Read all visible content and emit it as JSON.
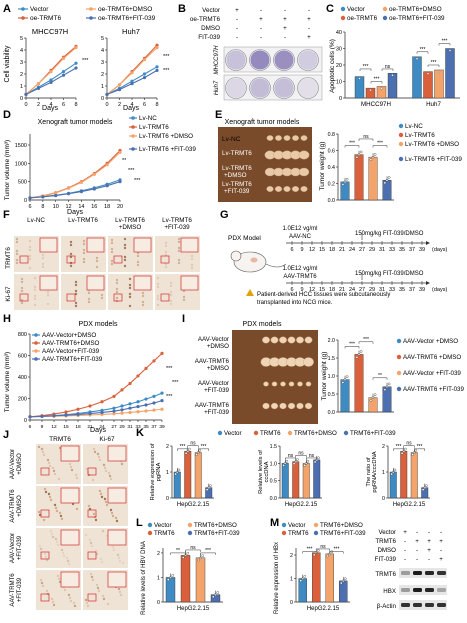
{
  "colors": {
    "vector": "#3e8bc4",
    "trmt6": "#d9603b",
    "dmso": "#f4a46a",
    "fit": "#4b6fb0",
    "axis": "#222222",
    "plate_bg": "#7a4b2a",
    "ihc_bg": "#efe3d6",
    "red_box": "#d22a2a"
  },
  "panels": {
    "A": {
      "letter": "A",
      "legend": [
        "Vector",
        "oe-TRMT6",
        "oe-TRMT6+DMSO",
        "oe-TRMT6+FIT-039"
      ],
      "ylabel": "Cell viability",
      "xlabel": "Days",
      "left_title": "MHCC97H",
      "right_title": "Huh7",
      "xticks": [
        "0",
        "2",
        "4",
        "6",
        "8"
      ],
      "yticks_left": [
        "0",
        "1",
        "2",
        "3",
        "4",
        "5"
      ],
      "yticks_right": [
        "0",
        "1",
        "2",
        "3",
        "4",
        "5"
      ],
      "sig": [
        "***",
        "***",
        "***"
      ]
    },
    "B": {
      "letter": "B",
      "row_labels": [
        "Vector",
        "oe-TRMT6",
        "DMSO",
        "FIT-039"
      ],
      "grid": [
        [
          "+",
          "-",
          "-",
          "-"
        ],
        [
          "-",
          "+",
          "+",
          "+"
        ],
        [
          "-",
          "-",
          "+",
          "-"
        ],
        [
          "-",
          "-",
          "-",
          "+"
        ]
      ],
      "cell_labels": [
        "MHCC97H",
        "Huh7"
      ]
    },
    "C": {
      "letter": "C",
      "legend": [
        "Vector",
        "oe-TRMT6",
        "oe-TRMT6+DMSO",
        "oe-TRMT6+FIT-039"
      ],
      "ylabel": "Apoptotic cells (%)",
      "yticks": [
        "0",
        "10",
        "20",
        "30",
        "40"
      ],
      "groups": [
        "MHCC97H",
        "Huh7"
      ],
      "sig": [
        "***",
        "***",
        "ns",
        "***",
        "***",
        "***"
      ]
    },
    "D": {
      "letter": "D",
      "title": "Xenograft tumor models",
      "legend": [
        "Lv-NC",
        "Lv-TRMT6",
        "Lv-TRMT6 +DMSO",
        "Lv-TRMT6 +FIT-039"
      ],
      "ylabel": "Tumor volume (mm³)",
      "xlabel": "Days",
      "xticks": [
        "6",
        "8",
        "10",
        "12",
        "14",
        "16",
        "18",
        "20"
      ],
      "yticks": [
        "0",
        "500",
        "1000",
        "1500"
      ],
      "sig": [
        "**",
        "***",
        "***"
      ]
    },
    "E": {
      "letter": "E",
      "title": "Xenograft tumor models",
      "row_labels": [
        "Lv-NC",
        "Lv-TRMT6",
        "Lv-TRMT6 +DMSO",
        "Lv-TRMT6 +FIT-039"
      ],
      "ylabel": "Tumor weight (g)",
      "yticks": [
        "0.0",
        "0.2",
        "0.4",
        "0.6",
        "0.8"
      ],
      "legend": [
        "Lv-NC",
        "Lv-TRMT6",
        "Lv-TRMT6 +DMSO",
        "Lv-TRMT6 +FIT-039"
      ],
      "sig": [
        "***",
        "ns",
        "***"
      ]
    },
    "F": {
      "letter": "F",
      "cols": [
        "Lv-NC",
        "Lv-TRMT6",
        "Lv-TRMT6 +DMSO",
        "Lv-TRMT6 +FIT-039"
      ],
      "rows": [
        "TRMT6",
        "Ki-67"
      ]
    },
    "G": {
      "letter": "G",
      "model_label": "PDX Model",
      "dose1": "1.0E12 vg/ml",
      "arm1": "AAV-NC",
      "dose2": "1.0E12 vg/ml",
      "arm2": "AAV-TRMT6",
      "drug": "150mg/kg FIT-039/DMSO",
      "days": [
        "6",
        "9",
        "12",
        "15",
        "18",
        "21",
        "24",
        "27",
        "29",
        "31",
        "33",
        "35",
        "37",
        "39"
      ],
      "days_unit": "(days)",
      "note": "Patient-derived HCC tissues were subcutaneously transplanted into NCG mice."
    },
    "H": {
      "letter": "H",
      "title": "PDX models",
      "legend": [
        "AAV-Vector+DMSO",
        "AAV-TRMT6+DMSO",
        "AAV-Vector+FIT-039",
        "AAV-TRMT6+FIT-039"
      ],
      "ylabel": "Tumor volume (mm³)",
      "xlabel": "Days",
      "xticks": [
        "6",
        "9",
        "12",
        "15",
        "18",
        "21",
        "24",
        "27",
        "29",
        "31",
        "33",
        "35",
        "37",
        "39"
      ],
      "yticks": [
        "0",
        "200",
        "400",
        "600",
        "800"
      ],
      "sig": [
        "***",
        "***",
        "***"
      ]
    },
    "I": {
      "letter": "I",
      "title": "PDX models",
      "row_labels": [
        "AAV-Vector +DMSO",
        "AAV-TRMT6 +DMSO",
        "AAV-Vector +FIT-039",
        "AAV-TRMT6 +FIT-039"
      ],
      "ylabel": "Tumor weight (g)",
      "yticks": [
        "0.0",
        "0.5",
        "1.0",
        "1.5",
        "2.0"
      ],
      "legend": [
        "AAV-Vector +DMSO",
        "AAV-TRMT6 +DMSO",
        "AAV-Vector +FIT-039",
        "AAV-TRMT6 +FIT-039"
      ],
      "sig": [
        "***",
        "***",
        "**"
      ]
    },
    "J": {
      "letter": "J",
      "cols": [
        "TRMT6",
        "Ki-67"
      ],
      "rows": [
        "AAV-Vector +DMSO",
        "AAV-TRMT6 +DMSO",
        "AAV-Vector +FIT-039",
        "AAV-TRMT6 +FIT-039"
      ]
    },
    "K": {
      "letter": "K",
      "legend": [
        "Vector",
        "TRMT6",
        "TRMT6+DMSO",
        "TRMT6+FIT-039"
      ],
      "sub": [
        {
          "ylabel": "Relative expression of pgRNA",
          "yticks": [
            "0",
            "1",
            "2"
          ],
          "xlabel": "HepG2.2.15",
          "sig": [
            "***",
            "ns",
            "***"
          ]
        },
        {
          "ylabel": "Relative levels of cccDNA",
          "yticks": [
            "0.0",
            "0.5",
            "1.0",
            "1.5"
          ],
          "xlabel": "HepG2.2.15",
          "sig": [
            "ns",
            "ns",
            "ns"
          ]
        },
        {
          "ylabel": "The ratio of pgRNA/cccDNA",
          "yticks": [
            "0",
            "1",
            "2"
          ],
          "xlabel": "HepG2.2.15",
          "sig": [
            "***",
            "ns",
            "***"
          ]
        }
      ]
    },
    "L": {
      "letter": "L",
      "legend": [
        "Vector",
        "TRMT6+DMSO",
        "TRMT6",
        "TRMT6+FIT-039"
      ],
      "ylabel": "Relative levels of HBV DNA",
      "yticks": [
        "0",
        "1",
        "2"
      ],
      "xlabel": "HepG2.2.15",
      "sig": [
        "**",
        "ns",
        "***"
      ]
    },
    "M": {
      "letter": "M",
      "legend": [
        "Vector",
        "TRMT6+DMSO",
        "TRMT6",
        "TRMT6+FIT-039"
      ],
      "ylabel": "Relative expression of HBx",
      "yticks": [
        "0",
        "1",
        "2"
      ],
      "xlabel": "HepG2.2.15",
      "sig": [
        "***",
        "ns",
        "***"
      ],
      "blot_rows": [
        "Vector",
        "TRMT6",
        "DMSO",
        "FIT-039"
      ],
      "blot_grid": [
        [
          "+",
          "-",
          "-",
          "-"
        ],
        [
          "-",
          "+",
          "+",
          "+"
        ],
        [
          "-",
          "-",
          "+",
          "-"
        ],
        [
          "-",
          "-",
          "-",
          "+"
        ]
      ],
      "bands": [
        "TRMT6",
        "HBX",
        "β-Actin"
      ]
    }
  },
  "chart_data": [
    {
      "type": "line",
      "panel": "A-left",
      "title": "MHCC97H",
      "xlabel": "Days",
      "ylabel": "Cell viability",
      "x": [
        0,
        2,
        4,
        6,
        8
      ],
      "ylim": [
        0,
        5
      ],
      "series": [
        {
          "name": "Vector",
          "values": [
            0.3,
            0.9,
            1.5,
            2.2,
            2.9
          ]
        },
        {
          "name": "oe-TRMT6",
          "values": [
            0.3,
            1.2,
            2.3,
            3.4,
            4.3
          ]
        },
        {
          "name": "oe-TRMT6+DMSO",
          "values": [
            0.3,
            1.2,
            2.2,
            3.3,
            4.2
          ]
        },
        {
          "name": "oe-TRMT6+FIT-039",
          "values": [
            0.3,
            0.8,
            1.3,
            1.9,
            2.5
          ]
        }
      ]
    },
    {
      "type": "line",
      "panel": "A-right",
      "title": "Huh7",
      "xlabel": "Days",
      "ylabel": "Cell viability",
      "x": [
        0,
        2,
        4,
        6,
        8
      ],
      "ylim": [
        0,
        5
      ],
      "series": [
        {
          "name": "Vector",
          "values": [
            0.3,
            0.8,
            1.4,
            2.0,
            2.6
          ]
        },
        {
          "name": "oe-TRMT6",
          "values": [
            0.3,
            1.1,
            2.2,
            3.3,
            4.4
          ]
        },
        {
          "name": "oe-TRMT6+DMSO",
          "values": [
            0.3,
            1.1,
            2.1,
            3.2,
            4.2
          ]
        },
        {
          "name": "oe-TRMT6+FIT-039",
          "values": [
            0.3,
            0.7,
            1.2,
            1.7,
            2.3
          ]
        }
      ]
    },
    {
      "type": "bar",
      "panel": "C",
      "ylabel": "Apoptotic cells (%)",
      "categories": [
        "MHCC97H",
        "Huh7"
      ],
      "ylim": [
        0,
        40
      ],
      "series": [
        {
          "name": "Vector",
          "values": [
            13,
            25
          ]
        },
        {
          "name": "oe-TRMT6",
          "values": [
            6,
            16
          ]
        },
        {
          "name": "oe-TRMT6+DMSO",
          "values": [
            7,
            17
          ]
        },
        {
          "name": "oe-TRMT6+FIT-039",
          "values": [
            15,
            30
          ]
        }
      ]
    },
    {
      "type": "line",
      "panel": "D",
      "title": "Xenograft tumor models",
      "xlabel": "Days",
      "ylabel": "Tumor volume (mm³)",
      "x": [
        6,
        8,
        10,
        12,
        14,
        16,
        18,
        20
      ],
      "ylim": [
        0,
        1800
      ],
      "series": [
        {
          "name": "Lv-NC",
          "values": [
            60,
            90,
            130,
            180,
            250,
            330,
            430,
            550
          ]
        },
        {
          "name": "Lv-TRMT6",
          "values": [
            60,
            110,
            200,
            330,
            500,
            720,
            1000,
            1350
          ]
        },
        {
          "name": "Lv-TRMT6 +DMSO",
          "values": [
            60,
            105,
            190,
            320,
            480,
            700,
            960,
            1300
          ]
        },
        {
          "name": "Lv-TRMT6 +FIT-039",
          "values": [
            60,
            85,
            120,
            170,
            230,
            300,
            390,
            500
          ]
        }
      ]
    },
    {
      "type": "bar",
      "panel": "E",
      "title": "Xenograft tumor models",
      "ylabel": "Tumor weight (g)",
      "categories": [
        "Lv-NC",
        "Lv-TRMT6",
        "Lv-TRMT6 +DMSO",
        "Lv-TRMT6 +FIT-039"
      ],
      "ylim": [
        0,
        0.8
      ],
      "values": [
        0.22,
        0.55,
        0.52,
        0.24
      ]
    },
    {
      "type": "line",
      "panel": "H",
      "title": "PDX models",
      "xlabel": "Days",
      "ylabel": "Tumor volume (mm³)",
      "x": [
        6,
        9,
        12,
        15,
        18,
        21,
        24,
        27,
        29,
        31,
        33,
        35,
        37,
        39
      ],
      "ylim": [
        0,
        800
      ],
      "series": [
        {
          "name": "AAV-Vector+DMSO",
          "values": [
            30,
            35,
            40,
            50,
            60,
            75,
            90,
            110,
            130,
            150,
            170,
            195,
            220,
            250
          ]
        },
        {
          "name": "AAV-TRMT6+DMSO",
          "values": [
            30,
            40,
            55,
            75,
            100,
            130,
            170,
            220,
            280,
            340,
            410,
            480,
            550,
            620
          ]
        },
        {
          "name": "AAV-Vector+FIT-039",
          "values": [
            30,
            32,
            35,
            38,
            42,
            47,
            52,
            58,
            64,
            70,
            77,
            84,
            92,
            100
          ]
        },
        {
          "name": "AAV-TRMT6+FIT-039",
          "values": [
            30,
            34,
            39,
            45,
            52,
            60,
            70,
            82,
            95,
            110,
            125,
            140,
            158,
            180
          ]
        }
      ]
    },
    {
      "type": "bar",
      "panel": "I",
      "title": "PDX models",
      "ylabel": "Tumor weight (g)",
      "categories": [
        "AAV-Vector +DMSO",
        "AAV-TRMT6 +DMSO",
        "AAV-Vector +FIT-039",
        "AAV-TRMT6 +FIT-039"
      ],
      "ylim": [
        0,
        2.0
      ],
      "values": [
        0.9,
        1.6,
        0.4,
        0.7
      ]
    },
    {
      "type": "bar",
      "panel": "K-1",
      "ylabel": "Relative expression of pgRNA",
      "xlabel": "HepG2.2.15",
      "categories": [
        "Vector",
        "TRMT6",
        "TRMT6+DMSO",
        "TRMT6+FIT-039"
      ],
      "ylim": [
        0,
        2.5
      ],
      "values": [
        1.0,
        1.8,
        1.75,
        0.4
      ]
    },
    {
      "type": "bar",
      "panel": "K-2",
      "ylabel": "Relative levels of cccDNA",
      "xlabel": "HepG2.2.15",
      "categories": [
        "Vector",
        "TRMT6",
        "TRMT6+DMSO",
        "TRMT6+FIT-039"
      ],
      "ylim": [
        0,
        1.5
      ],
      "values": [
        1.0,
        1.05,
        1.0,
        1.1
      ]
    },
    {
      "type": "bar",
      "panel": "K-3",
      "ylabel": "The ratio of pgRNA/cccDNA",
      "xlabel": "HepG2.2.15",
      "categories": [
        "Vector",
        "TRMT6",
        "TRMT6+DMSO",
        "TRMT6+FIT-039"
      ],
      "ylim": [
        0,
        2.5
      ],
      "values": [
        1.0,
        1.8,
        1.75,
        0.4
      ]
    },
    {
      "type": "bar",
      "panel": "L",
      "ylabel": "Relative levels of HBV DNA",
      "xlabel": "HepG2.2.15",
      "categories": [
        "Vector",
        "TRMT6",
        "TRMT6+DMSO",
        "TRMT6+FIT-039"
      ],
      "ylim": [
        0,
        2.5
      ],
      "values": [
        1.0,
        1.9,
        1.8,
        0.3
      ]
    },
    {
      "type": "bar",
      "panel": "M",
      "ylabel": "Relative expression of HBx",
      "xlabel": "HepG2.2.15",
      "categories": [
        "Vector",
        "TRMT6",
        "TRMT6+DMSO",
        "TRMT6+FIT-039"
      ],
      "ylim": [
        0,
        2.5
      ],
      "values": [
        1.0,
        2.1,
        2.05,
        0.9
      ]
    }
  ]
}
